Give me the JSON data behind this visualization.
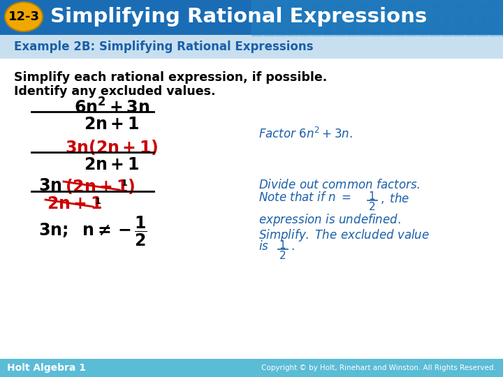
{
  "title_badge": "12-3",
  "title_text": "Simplifying Rational Expressions",
  "header_bg_color": "#1a6db5",
  "header_text_color": "#ffffff",
  "badge_bg_color": "#f0a800",
  "badge_text_color": "#000000",
  "body_bg_color": "#ffffff",
  "example_label": "Example 2B: Simplifying Rational Expressions",
  "example_label_color": "#1a5fa8",
  "example_bar_color": "#c8dff0",
  "instruction_line1": "Simplify each rational expression, if possible.",
  "instruction_line2": "Identify any excluded values.",
  "instruction_color": "#000000",
  "footer_bg_color": "#5bbcd6",
  "footer_left": "Holt Algebra 1",
  "footer_right": "Copyright © by Holt, Rinehart and Winston. All Rights Reserved.",
  "footer_text_color": "#ffffff",
  "math_color": "#000000",
  "math_red_color": "#cc0000",
  "note_color": "#1a5fa8",
  "tile_color": "#2a8fc8",
  "tile_edge_color": "#4ab0d8"
}
